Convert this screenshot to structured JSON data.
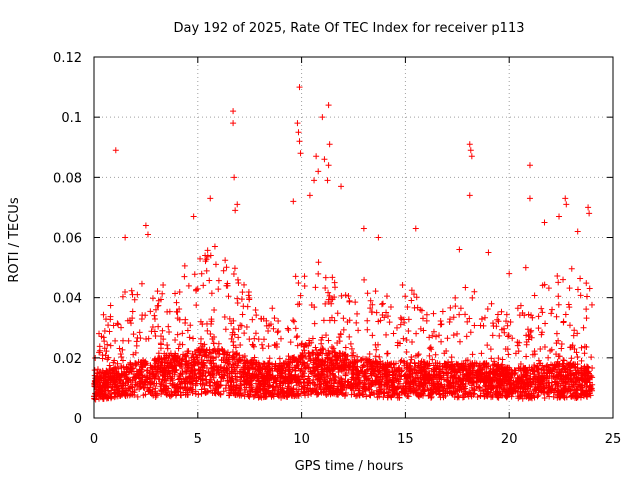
{
  "chart_data": {
    "type": "scatter",
    "title": "Day 192 of 2025, Rate Of TEC Index for receiver p113",
    "xlabel": "GPS time / hours",
    "ylabel": "ROTI / TECUs",
    "xlim": [
      0,
      25
    ],
    "ylim": [
      0,
      0.12
    ],
    "x_ticks": [
      "0",
      "5",
      "10",
      "15",
      "20",
      "25"
    ],
    "y_ticks": [
      "0",
      "0.02",
      "0.04",
      "0.06",
      "0.08",
      "0.1",
      "0.12"
    ],
    "grid": true,
    "marker": "+",
    "series": [
      {
        "color": "#ff0000",
        "points": [
          [
            1.05,
            0.089
          ],
          [
            6.7,
            0.102
          ],
          [
            6.7,
            0.098
          ],
          [
            6.75,
            0.08
          ],
          [
            9.9,
            0.11
          ],
          [
            9.8,
            0.098
          ],
          [
            9.85,
            0.095
          ],
          [
            9.9,
            0.092
          ],
          [
            9.95,
            0.088
          ],
          [
            10.4,
            0.074
          ],
          [
            10.7,
            0.087
          ],
          [
            11.0,
            0.1
          ],
          [
            11.3,
            0.104
          ],
          [
            11.35,
            0.091
          ],
          [
            11.3,
            0.084
          ],
          [
            11.25,
            0.079
          ],
          [
            11.9,
            0.077
          ],
          [
            18.1,
            0.091
          ],
          [
            18.15,
            0.089
          ],
          [
            18.2,
            0.087
          ],
          [
            18.1,
            0.074
          ],
          [
            21.0,
            0.084
          ],
          [
            21.0,
            0.073
          ],
          [
            22.7,
            0.073
          ],
          [
            22.75,
            0.071
          ],
          [
            23.8,
            0.07
          ],
          [
            23.85,
            0.068
          ],
          [
            23.3,
            0.062
          ],
          [
            22.4,
            0.067
          ],
          [
            2.5,
            0.064
          ],
          [
            2.6,
            0.061
          ],
          [
            1.5,
            0.06
          ],
          [
            4.8,
            0.067
          ],
          [
            5.6,
            0.073
          ],
          [
            6.9,
            0.071
          ],
          [
            6.8,
            0.069
          ],
          [
            9.6,
            0.072
          ],
          [
            10.6,
            0.079
          ],
          [
            10.8,
            0.082
          ],
          [
            11.1,
            0.086
          ],
          [
            13.0,
            0.063
          ],
          [
            13.7,
            0.06
          ],
          [
            15.5,
            0.063
          ],
          [
            17.6,
            0.056
          ],
          [
            19.0,
            0.055
          ],
          [
            20.0,
            0.048
          ],
          [
            20.8,
            0.05
          ],
          [
            21.7,
            0.065
          ]
        ]
      }
    ],
    "density_profile": {
      "hours": [
        0,
        1,
        2,
        3,
        4,
        5,
        6,
        7,
        8,
        9,
        10,
        11,
        12,
        13,
        14,
        15,
        16,
        17,
        18,
        19,
        20,
        21,
        22,
        23,
        24
      ],
      "upper_envelope": [
        0.03,
        0.04,
        0.046,
        0.043,
        0.05,
        0.055,
        0.06,
        0.05,
        0.033,
        0.04,
        0.05,
        0.055,
        0.045,
        0.05,
        0.04,
        0.045,
        0.04,
        0.038,
        0.045,
        0.04,
        0.035,
        0.04,
        0.048,
        0.05,
        0.045
      ],
      "typical": [
        0.011,
        0.012,
        0.013,
        0.014,
        0.015,
        0.016,
        0.016,
        0.015,
        0.013,
        0.013,
        0.015,
        0.016,
        0.015,
        0.014,
        0.013,
        0.013,
        0.013,
        0.013,
        0.013,
        0.013,
        0.012,
        0.012,
        0.013,
        0.013,
        0.012
      ],
      "floor": 0.004
    }
  }
}
